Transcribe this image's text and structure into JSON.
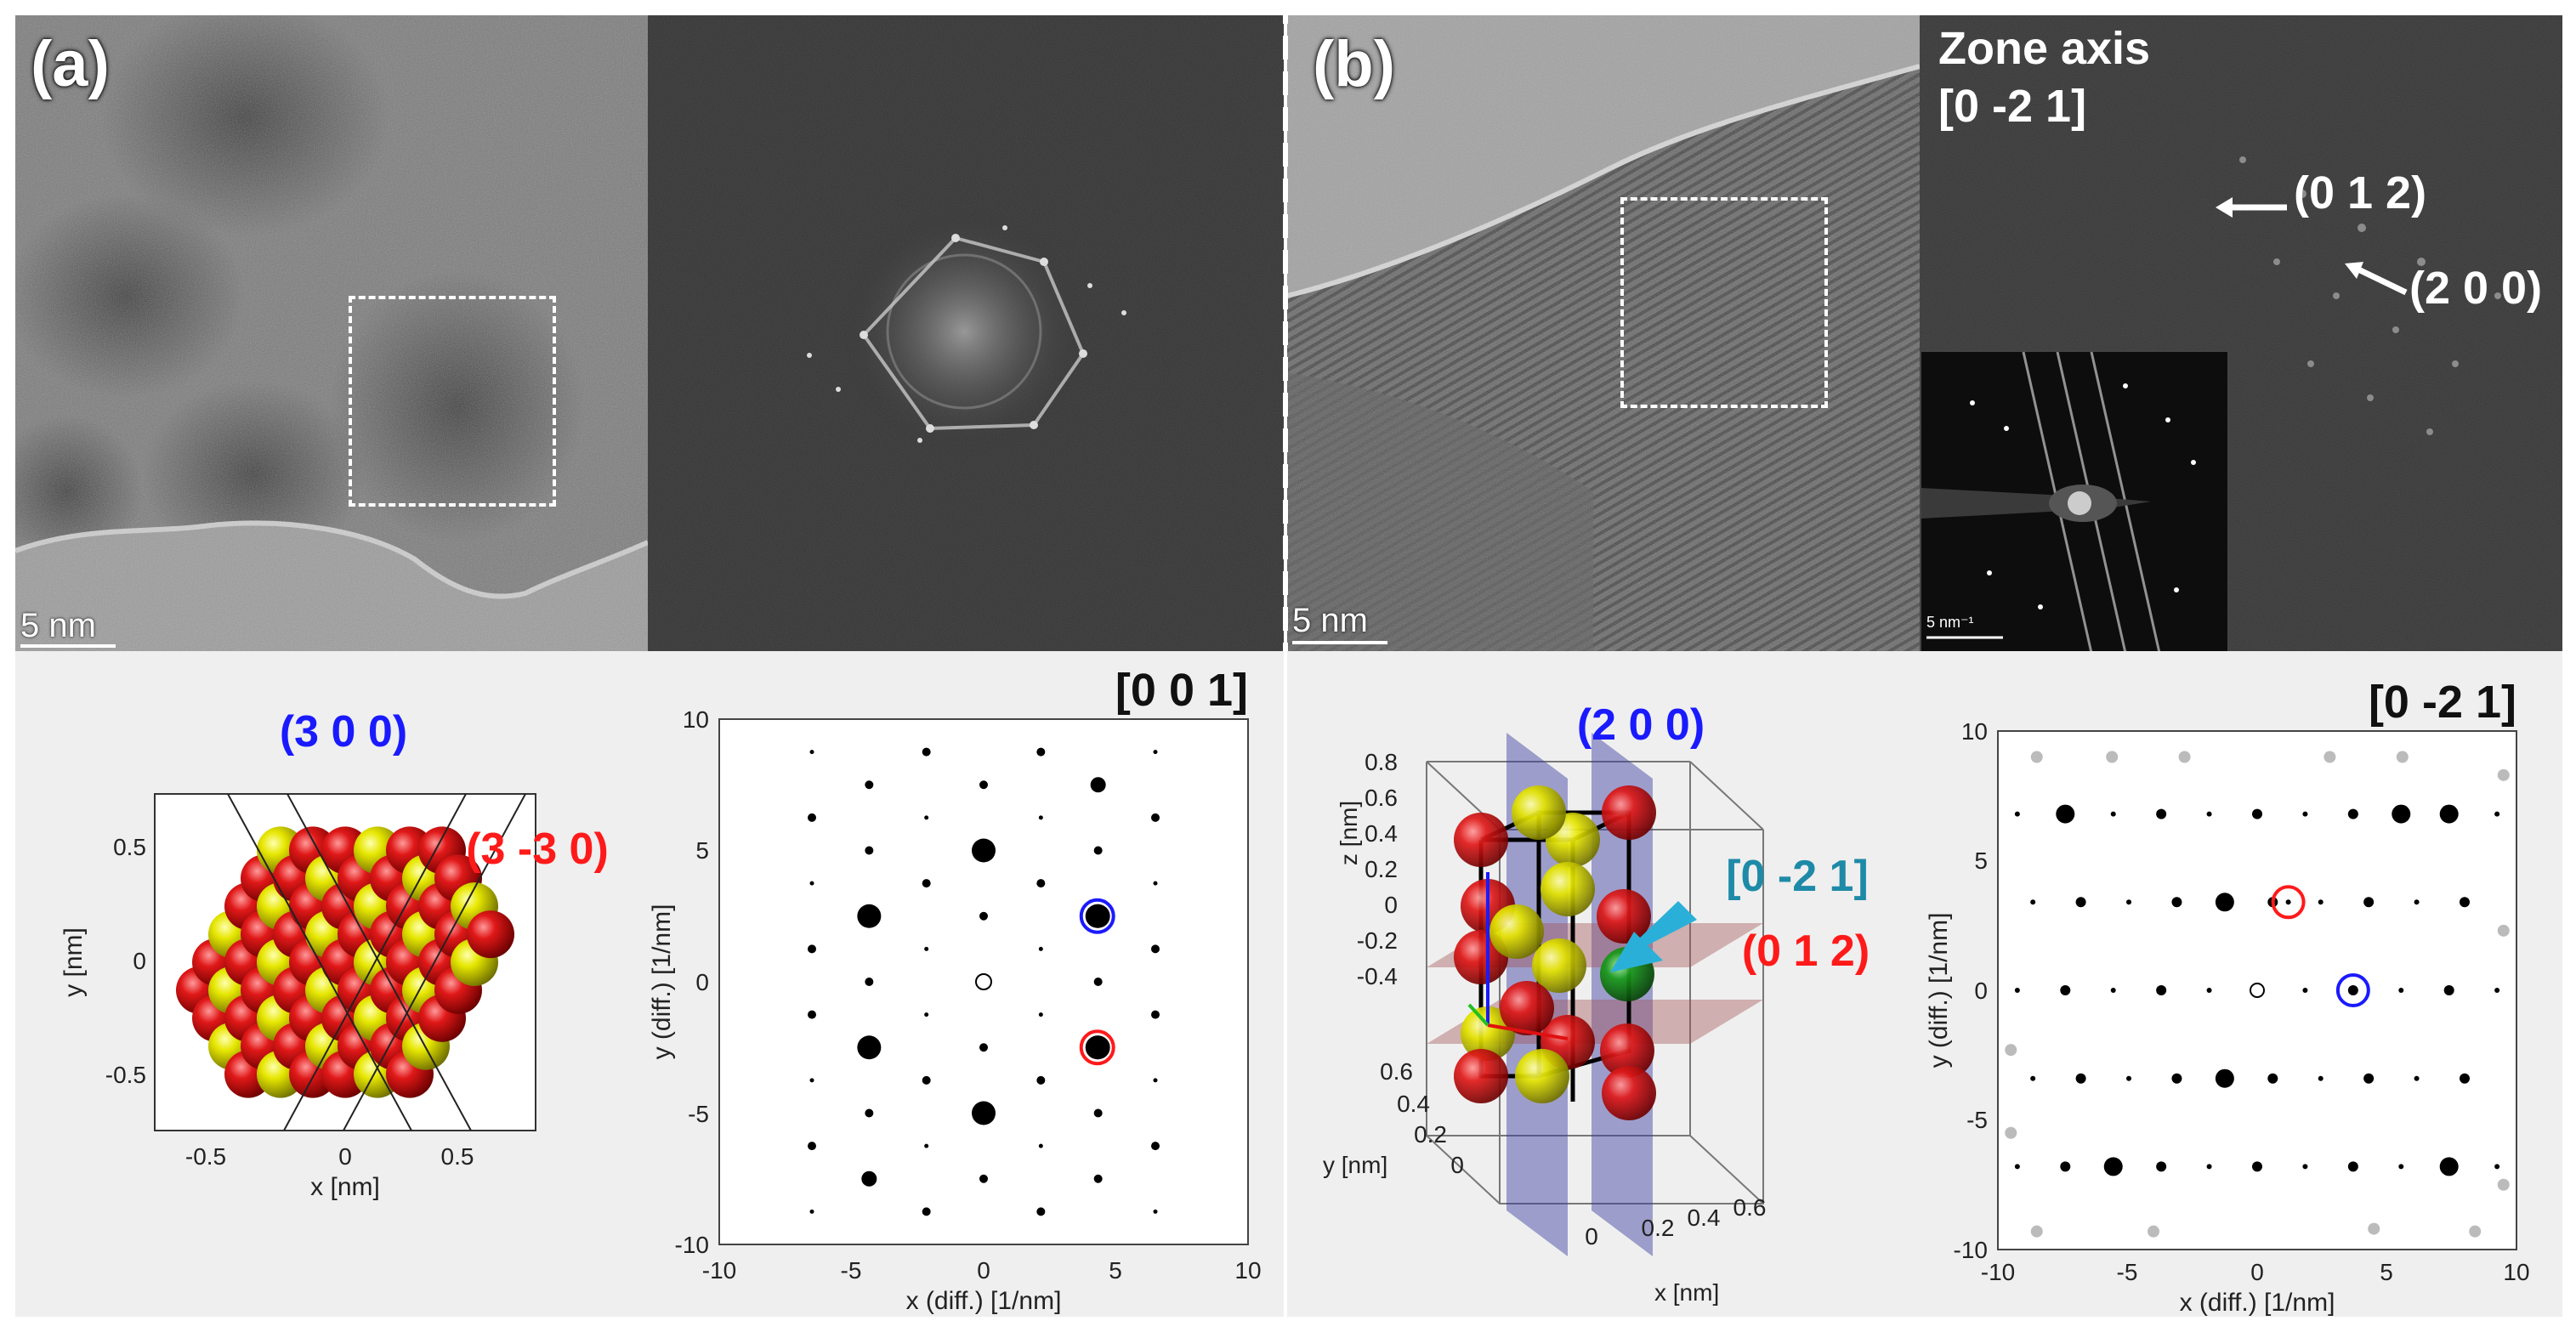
{
  "panel_a": {
    "label": "(a)",
    "scale_bar": "5 nm",
    "atom_plot": {
      "title_blue": "(3 0 0)",
      "title_red": "(3 -3 0)",
      "xlabel": "x [nm]",
      "ylabel": "y [nm]",
      "xticks": [
        "-0.5",
        "0",
        "0.5"
      ],
      "yticks": [
        "0.5",
        "0",
        "-0.5"
      ]
    },
    "diffraction": {
      "zone": "[0 0 1]",
      "xlabel": "x (diff.) [1/nm]",
      "ylabel": "y (diff.) [1/nm]",
      "xticks": [
        "-10",
        "-5",
        "0",
        "5",
        "10"
      ],
      "yticks": [
        "10",
        "5",
        "0",
        "-5",
        "-10"
      ]
    }
  },
  "panel_b": {
    "label": "(b)",
    "scale_bar": "5 nm",
    "zone_axis_line1": "Zone axis",
    "zone_axis_line2": "[0 -2 1]",
    "spot1": "(0 1 2)",
    "spot2": "(2 0 0)",
    "inset_scale": "5 nm⁻¹",
    "cell_plot": {
      "plane_blue": "(2 0 0)",
      "plane_red": "(0 1 2)",
      "direction": "[0 -2 1]",
      "zlabel": "z [nm]",
      "ylabel": "y [nm]",
      "xlabel": "x [nm]",
      "zticks": [
        "0.8",
        "0.6",
        "0.4",
        "0.2",
        "0",
        "-0.2",
        "-0.4"
      ],
      "yticks": [
        "0.6",
        "0.4",
        "0.2",
        "0"
      ],
      "xticks": [
        "0",
        "0.2",
        "0.4",
        "0.6"
      ]
    },
    "diffraction": {
      "zone": "[0 -2 1]",
      "xlabel": "x (diff.) [1/nm]",
      "ylabel": "y (diff.) [1/nm]",
      "xticks": [
        "-10",
        "-5",
        "0",
        "5",
        "10"
      ],
      "yticks": [
        "10",
        "5",
        "0",
        "-5",
        "-10"
      ]
    }
  },
  "chart_data": [
    {
      "type": "scatter",
      "title": "[0 0 1]",
      "xlabel": "x (diff.) [1/nm]",
      "ylabel": "y (diff.) [1/nm]",
      "xlim": [
        -10,
        10
      ],
      "ylim": [
        -10,
        10
      ],
      "origin": [
        0,
        0
      ],
      "circled_blue": [
        4.3,
        2.5
      ],
      "circled_red": [
        4.3,
        -2.5
      ],
      "large_spots": [
        [
          0,
          5
        ],
        [
          0,
          -5
        ],
        [
          -4.3,
          2.5
        ],
        [
          -4.3,
          -2.5
        ],
        [
          4.3,
          2.5
        ],
        [
          4.3,
          -2.5
        ]
      ],
      "medium_spots": [
        [
          4.3,
          7.5
        ],
        [
          -4.3,
          -7.5
        ]
      ],
      "lattice_a": [
        4.33,
        2.5
      ],
      "lattice_b": [
        0,
        2.5
      ]
    },
    {
      "type": "scatter",
      "title": "[0 -2 1]",
      "xlabel": "x (diff.) [1/nm]",
      "ylabel": "y (diff.) [1/nm]",
      "xlim": [
        -10,
        10
      ],
      "ylim": [
        -10,
        10
      ],
      "origin": [
        0,
        0
      ],
      "circled_blue": [
        3.7,
        0
      ],
      "circled_red": [
        1.2,
        3.4
      ],
      "rows_y": [
        6.8,
        3.4,
        0,
        -3.4,
        -6.8
      ],
      "row_x_spacing": 1.85,
      "large_spots": [
        [
          -7.3,
          6.8
        ],
        [
          5.9,
          6.8
        ],
        [
          7.4,
          6.8
        ],
        [
          -1.2,
          3.4
        ],
        [
          -1.2,
          -3.4
        ],
        [
          -5.9,
          -6.8
        ],
        [
          7.3,
          -6.8
        ]
      ]
    }
  ]
}
